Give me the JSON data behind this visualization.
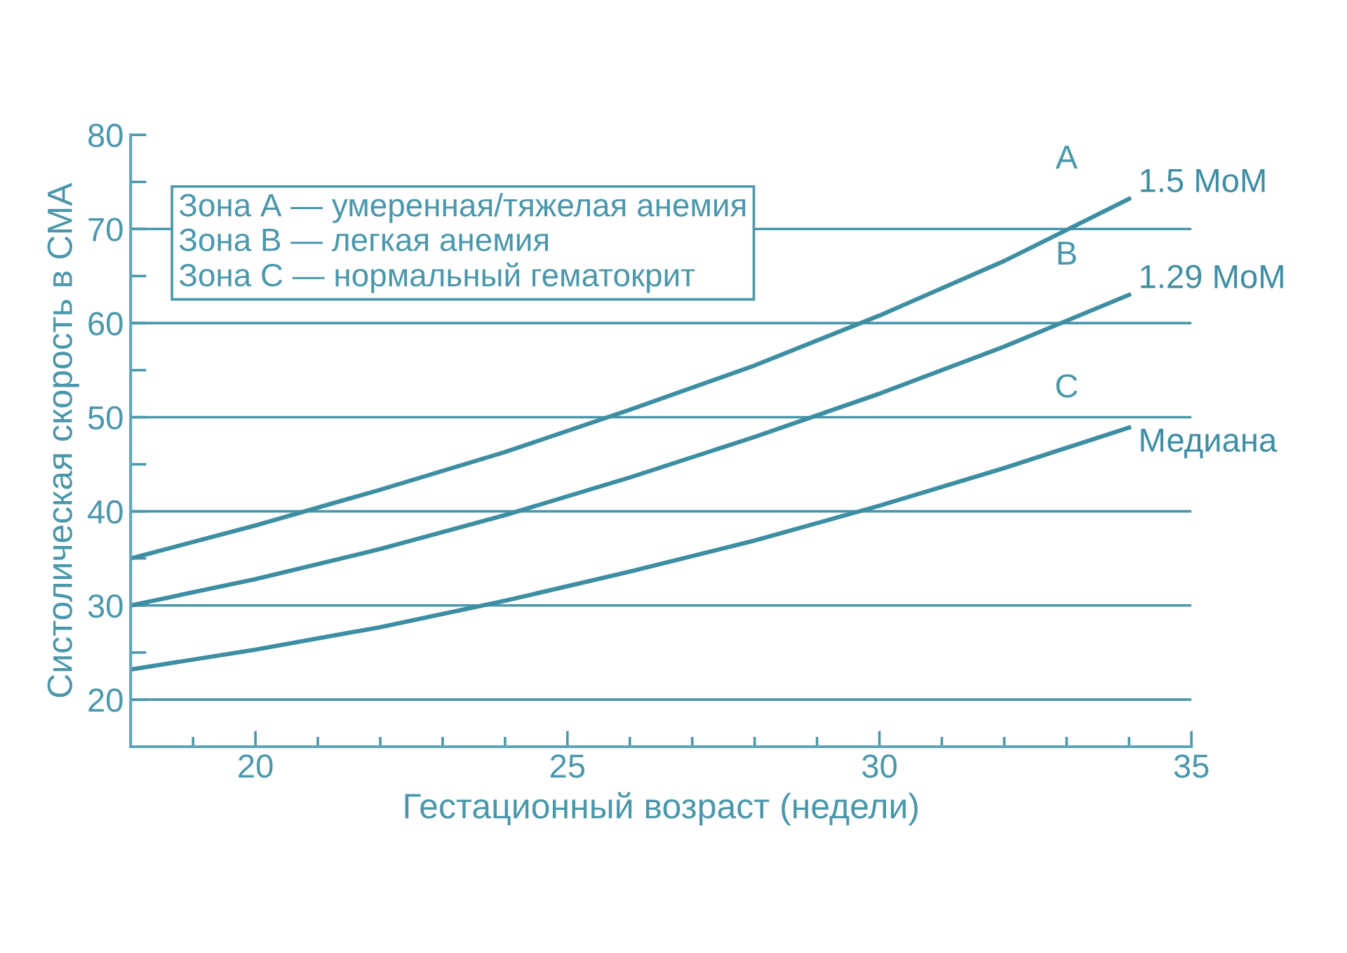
{
  "chart_data": {
    "type": "line",
    "xlabel": "Гестационный возраст (недели)",
    "ylabel": "Систолическая скорость в СМА",
    "x": [
      18,
      20,
      22,
      24,
      26,
      28,
      30,
      32,
      34
    ],
    "series": [
      {
        "name": "1.5 MoM",
        "color": "#3e8ea3",
        "values": [
          35,
          38.5,
          42.3,
          46.3,
          50.8,
          55.5,
          60.8,
          66.6,
          73.2
        ]
      },
      {
        "name": "1.29 MoM",
        "color": "#3e8ea3",
        "values": [
          30,
          32.8,
          36,
          39.6,
          43.6,
          47.9,
          52.5,
          57.5,
          63
        ]
      },
      {
        "name": "Медиана",
        "color": "#3e8ea3",
        "values": [
          23.2,
          25.3,
          27.7,
          30.5,
          33.6,
          36.9,
          40.6,
          44.6,
          48.9
        ]
      }
    ],
    "xlim": [
      18,
      35
    ],
    "ylim": [
      15,
      80
    ],
    "xticks": [
      {
        "value": 19,
        "label": null
      },
      20,
      {
        "value": 21,
        "label": null
      },
      {
        "value": 22,
        "label": null
      },
      {
        "value": 23,
        "label": null
      },
      {
        "value": 24,
        "label": null
      },
      25,
      {
        "value": 26,
        "label": null
      },
      {
        "value": 27,
        "label": null
      },
      {
        "value": 28,
        "label": null
      },
      {
        "value": 29,
        "label": null
      },
      30,
      {
        "value": 31,
        "label": null
      },
      {
        "value": 32,
        "label": null
      },
      {
        "value": 33,
        "label": null
      },
      {
        "value": 34,
        "label": null
      },
      35
    ],
    "yticks": [
      20,
      {
        "value": 25,
        "label": null
      },
      30,
      {
        "value": 35,
        "label": null
      },
      40,
      {
        "value": 45,
        "label": null
      },
      50,
      {
        "value": 55,
        "label": null
      },
      60,
      {
        "value": 65,
        "label": null
      },
      70,
      {
        "value": 75,
        "label": null
      },
      80
    ],
    "grid": "y",
    "legend": false,
    "marker": "none",
    "line_style": "solid",
    "annotations": [
      "Зона А — умеренная/тяжелая анемия",
      "Зона В — легкая анемия",
      "Зона С — нормальный гематокрит",
      "A",
      "B",
      "C"
    ]
  }
}
